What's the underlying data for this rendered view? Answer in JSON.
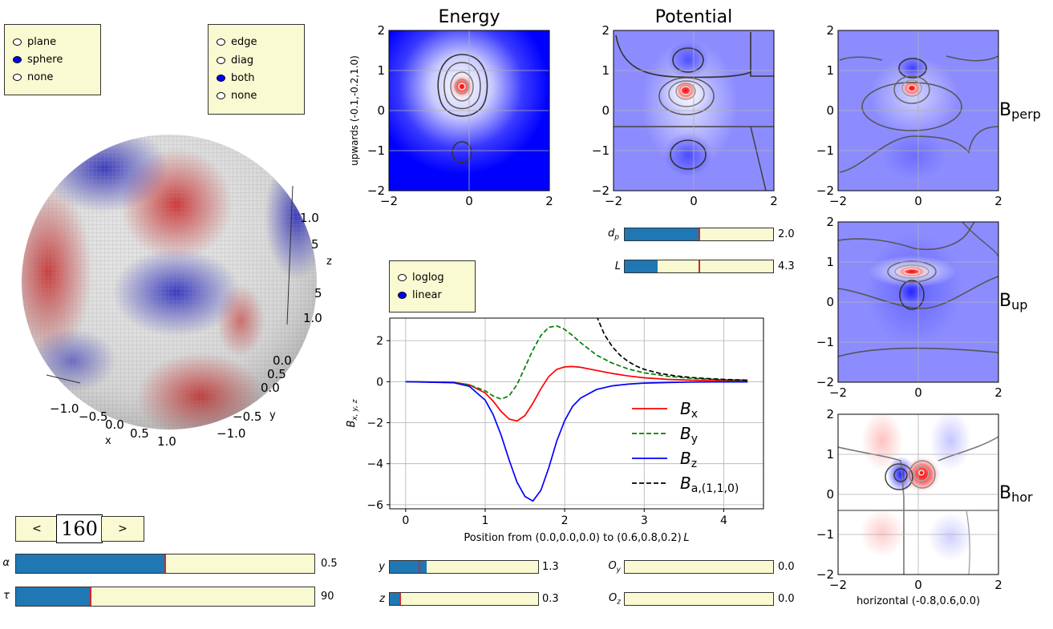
{
  "projection_options": {
    "items": [
      {
        "label": "plane",
        "selected": false
      },
      {
        "label": "sphere",
        "selected": true
      },
      {
        "label": "none",
        "selected": false
      }
    ]
  },
  "edge_options": {
    "items": [
      {
        "label": "edge",
        "selected": false
      },
      {
        "label": "diag",
        "selected": false
      },
      {
        "label": "both",
        "selected": true
      },
      {
        "label": "none",
        "selected": false
      }
    ]
  },
  "scale_options": {
    "items": [
      {
        "label": "loglog",
        "selected": false
      },
      {
        "label": "linear",
        "selected": true
      }
    ]
  },
  "sphere_plot": {
    "x_axis": {
      "label": "x",
      "ticks": [
        "−1.0",
        "−0.5",
        "0.0",
        "0.5",
        "1.0"
      ]
    },
    "y_axis": {
      "label": "y",
      "ticks": [
        "−1.0",
        "−0.5",
        "0.0",
        "0.5"
      ]
    },
    "z_axis": {
      "label": "z",
      "ticks": [
        "1.0",
        "0.5",
        "0.0",
        "−0.5",
        "−1.0"
      ]
    },
    "z_ticks_visible": [
      "1.0",
      "5",
      "5",
      "1.0"
    ]
  },
  "frame_nav": {
    "prev": "<",
    "frame": "160",
    "next": ">"
  },
  "sliders": {
    "alpha": {
      "label": "α",
      "value_text": "0.5",
      "fraction": 0.5,
      "marker": 0.5
    },
    "tau": {
      "label": "τ",
      "value_text": "90",
      "fraction": 0.25,
      "marker": 0.25
    },
    "dp": {
      "label": "d",
      "sub": "p",
      "value_text": "2.0",
      "fraction": 0.5,
      "marker": 0.5
    },
    "L": {
      "label": "L",
      "value_text": "4.3",
      "fraction": 0.22,
      "marker": 0.5
    },
    "y": {
      "label": "y",
      "value_text": "1.3",
      "fraction": 0.25,
      "marker": 0.2
    },
    "z": {
      "label": "z",
      "value_text": "0.3",
      "fraction": 0.07,
      "marker": 0.07
    },
    "Oy": {
      "label": "O",
      "sub": "y",
      "value_text": "0.0",
      "fraction": 0.0,
      "marker": 0.0
    },
    "Oz": {
      "label": "O",
      "sub": "z",
      "value_text": "0.0",
      "fraction": 0.0,
      "marker": 0.0
    }
  },
  "heatmaps": {
    "energy": {
      "title": "Energy",
      "ylabel": "upwards (-0.1,-0.2,1.0)",
      "xticks": [
        "−2",
        "0",
        "2"
      ],
      "yticks": [
        "2",
        "1",
        "0",
        "−1",
        "−2"
      ]
    },
    "potential": {
      "title": "Potential",
      "xticks": [
        "−2",
        "0",
        "2"
      ],
      "yticks": [
        "2",
        "1",
        "0",
        "−1",
        "−2"
      ]
    },
    "bperp": {
      "label": "B",
      "sub": "perp",
      "xticks": [
        "−2",
        "0",
        "2"
      ],
      "yticks": [
        "2",
        "1",
        "0",
        "−1",
        "−2"
      ]
    },
    "bup": {
      "label": "B",
      "sub": "up",
      "xticks": [
        "−2",
        "0",
        "2"
      ],
      "yticks": [
        "2",
        "1",
        "0",
        "−1",
        "−2"
      ]
    },
    "bhor": {
      "label": "B",
      "sub": "hor",
      "xlabel": "horizontal (-0.8,0.6,0.0)",
      "xticks": [
        "−2",
        "0",
        "2"
      ],
      "yticks": [
        "2",
        "1",
        "0",
        "−1",
        "−2"
      ]
    }
  },
  "chart_data": {
    "type": "line",
    "title": "",
    "xlabel": "Position from (0.0,0.0,0.0) to (0.6,0.8,0.2)",
    "xlabel_suffix": "L",
    "ylabel": "B",
    "ylabel_sub": "x, y, z",
    "xlim": [
      -0.2,
      4.5
    ],
    "ylim": [
      -6.2,
      3.1
    ],
    "xticks": [
      0,
      1,
      2,
      3,
      4
    ],
    "yticks": [
      2,
      0,
      -2,
      -4,
      -6
    ],
    "grid": true,
    "legend_position": "lower-right",
    "series": [
      {
        "name": "B",
        "sub": "x",
        "color": "#ff0000",
        "dash": "solid",
        "x": [
          0,
          0.6,
          0.8,
          1.0,
          1.1,
          1.2,
          1.3,
          1.4,
          1.5,
          1.6,
          1.7,
          1.8,
          1.9,
          2.0,
          2.1,
          2.2,
          2.4,
          2.6,
          2.8,
          3.0,
          3.3,
          3.6,
          4.0,
          4.3
        ],
        "y": [
          0,
          -0.03,
          -0.15,
          -0.55,
          -0.95,
          -1.45,
          -1.82,
          -1.92,
          -1.65,
          -1.05,
          -0.35,
          0.25,
          0.6,
          0.72,
          0.74,
          0.7,
          0.55,
          0.4,
          0.28,
          0.19,
          0.11,
          0.07,
          0.04,
          0.03
        ]
      },
      {
        "name": "B",
        "sub": "y",
        "color": "#008000",
        "dash": "dashed",
        "x": [
          0,
          0.6,
          0.8,
          1.0,
          1.1,
          1.2,
          1.3,
          1.4,
          1.5,
          1.6,
          1.7,
          1.8,
          1.9,
          2.0,
          2.1,
          2.2,
          2.4,
          2.6,
          2.8,
          3.0,
          3.3,
          3.6,
          4.0,
          4.3
        ],
        "y": [
          0,
          -0.04,
          -0.15,
          -0.45,
          -0.7,
          -0.85,
          -0.7,
          -0.15,
          0.7,
          1.55,
          2.25,
          2.65,
          2.72,
          2.55,
          2.25,
          1.9,
          1.3,
          0.9,
          0.62,
          0.43,
          0.26,
          0.16,
          0.09,
          0.07
        ]
      },
      {
        "name": "B",
        "sub": "z",
        "color": "#0000ff",
        "dash": "solid",
        "x": [
          0,
          0.6,
          0.8,
          1.0,
          1.1,
          1.2,
          1.3,
          1.4,
          1.5,
          1.6,
          1.7,
          1.8,
          1.9,
          2.0,
          2.1,
          2.2,
          2.4,
          2.6,
          2.8,
          3.0,
          3.3,
          3.6,
          4.0,
          4.3
        ],
        "y": [
          0,
          -0.05,
          -0.22,
          -0.9,
          -1.6,
          -2.6,
          -3.8,
          -4.9,
          -5.6,
          -5.82,
          -5.3,
          -4.2,
          -2.9,
          -1.9,
          -1.2,
          -0.8,
          -0.38,
          -0.2,
          -0.12,
          -0.07,
          -0.04,
          -0.02,
          -0.01,
          -0.01
        ]
      },
      {
        "name": "B",
        "sub": "a,(1,1,0)",
        "color": "#000000",
        "dash": "dashed",
        "x": [
          2.4,
          2.5,
          2.6,
          2.7,
          2.8,
          2.9,
          3.0,
          3.2,
          3.4,
          3.6,
          3.8,
          4.0,
          4.3
        ],
        "y": [
          3.2,
          2.3,
          1.7,
          1.28,
          0.98,
          0.76,
          0.6,
          0.4,
          0.28,
          0.2,
          0.15,
          0.11,
          0.07
        ]
      }
    ]
  }
}
